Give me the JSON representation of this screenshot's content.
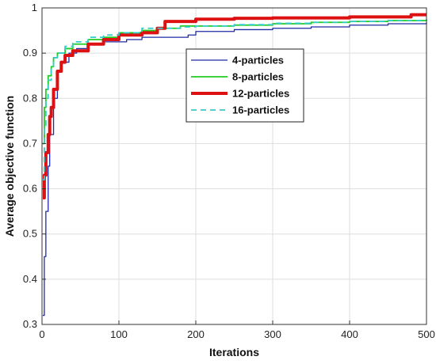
{
  "chart_data": {
    "type": "line",
    "xlabel": "Iterations",
    "ylabel": "Average objective function",
    "xlim": [
      0,
      500
    ],
    "ylim": [
      0.3,
      1.0
    ],
    "xticks": [
      0,
      100,
      200,
      300,
      400,
      500
    ],
    "yticks": [
      0.3,
      0.4,
      0.5,
      0.6,
      0.7,
      0.8,
      0.9,
      1.0
    ],
    "xtick_labels": [
      "0",
      "100",
      "200",
      "300",
      "400",
      "500"
    ],
    "ytick_labels": [
      "0.3",
      "0.4",
      "0.5",
      "0.6",
      "0.7",
      "0.8",
      "0.9",
      "1"
    ],
    "grid": true,
    "legend_position": "top-right",
    "series": [
      {
        "name": "4-particles",
        "color": "#1f2aa5",
        "style": "solid",
        "width": "thin",
        "x": [
          1,
          3,
          5,
          8,
          10,
          15,
          20,
          25,
          35,
          45,
          60,
          80,
          110,
          130,
          150,
          190,
          200,
          250,
          300,
          350,
          400,
          450,
          500
        ],
        "y": [
          0.32,
          0.45,
          0.55,
          0.65,
          0.72,
          0.8,
          0.86,
          0.88,
          0.9,
          0.91,
          0.92,
          0.925,
          0.93,
          0.935,
          0.935,
          0.94,
          0.948,
          0.952,
          0.955,
          0.958,
          0.962,
          0.965,
          0.968
        ]
      },
      {
        "name": "8-particles",
        "color": "#22cc22",
        "style": "solid",
        "width": "medium",
        "x": [
          1,
          3,
          5,
          8,
          12,
          15,
          20,
          30,
          40,
          60,
          80,
          100,
          130,
          150,
          180,
          200,
          250,
          300,
          350,
          400,
          450,
          500
        ],
        "y": [
          0.7,
          0.78,
          0.82,
          0.85,
          0.87,
          0.89,
          0.9,
          0.91,
          0.92,
          0.93,
          0.935,
          0.945,
          0.95,
          0.955,
          0.96,
          0.96,
          0.962,
          0.965,
          0.968,
          0.97,
          0.972,
          0.973
        ]
      },
      {
        "name": "12-particles",
        "color": "#dd1111",
        "style": "solid",
        "width": "thick",
        "x": [
          1,
          3,
          5,
          8,
          10,
          12,
          15,
          20,
          25,
          30,
          40,
          60,
          80,
          100,
          130,
          150,
          160,
          200,
          250,
          300,
          350,
          400,
          450,
          480,
          500
        ],
        "y": [
          0.58,
          0.63,
          0.68,
          0.72,
          0.76,
          0.78,
          0.82,
          0.86,
          0.88,
          0.895,
          0.905,
          0.92,
          0.93,
          0.94,
          0.945,
          0.955,
          0.97,
          0.975,
          0.977,
          0.978,
          0.978,
          0.98,
          0.98,
          0.985,
          0.985
        ]
      },
      {
        "name": "16-particles",
        "color": "#33cccc",
        "style": "dashed",
        "width": "medium",
        "x": [
          1,
          3,
          5,
          8,
          12,
          15,
          20,
          30,
          40,
          60,
          80,
          100,
          130,
          150,
          180,
          200,
          250,
          300,
          350,
          400,
          450,
          500
        ],
        "y": [
          0.62,
          0.74,
          0.8,
          0.84,
          0.87,
          0.89,
          0.9,
          0.915,
          0.925,
          0.935,
          0.94,
          0.945,
          0.955,
          0.955,
          0.958,
          0.96,
          0.963,
          0.966,
          0.968,
          0.97,
          0.972,
          0.975
        ]
      }
    ]
  }
}
